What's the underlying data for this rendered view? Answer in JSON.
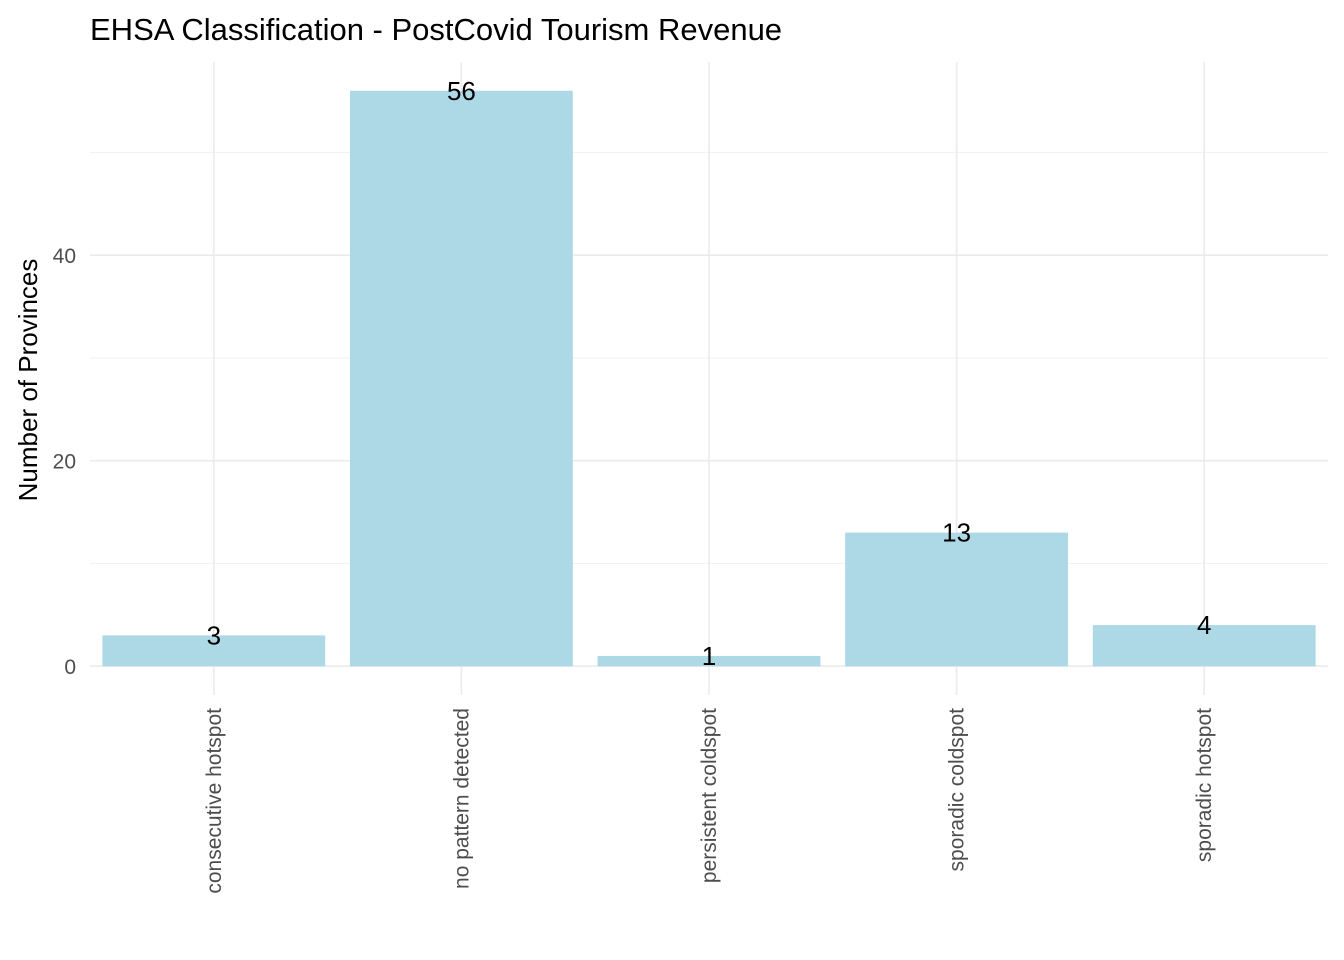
{
  "chart_data": {
    "type": "bar",
    "title": "EHSA Classification - PostCovid Tourism Revenue",
    "xlabel": "",
    "ylabel": "Number of Provinces",
    "categories": [
      "consecutive hotspot",
      "no pattern detected",
      "persistent coldspot",
      "sporadic coldspot",
      "sporadic hotspot"
    ],
    "values": [
      3,
      56,
      1,
      13,
      4
    ],
    "data_labels": [
      "3",
      "56",
      "1",
      "13",
      "4"
    ],
    "y_ticks": [
      0,
      20,
      40
    ],
    "y_tick_labels": [
      "0",
      "20",
      "40"
    ],
    "ylim": [
      -2.8,
      58.8
    ],
    "grid": true,
    "legend": "none",
    "bar_color": "#add8e6"
  }
}
